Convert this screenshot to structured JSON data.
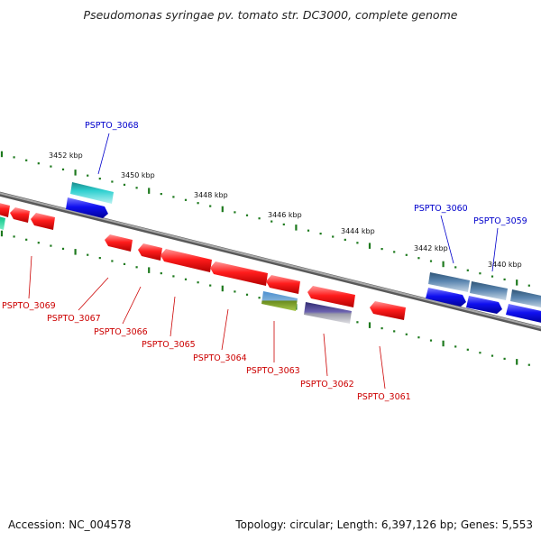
{
  "title": "Pseudomonas syringae pv. tomato str. DC3000, complete genome",
  "footer": {
    "accession": "Accession: NC_004578",
    "info": "Topology: circular; Length: 6,397,126 bp; Genes: 5,553"
  },
  "colors": {
    "backbone": "#8a8a8a",
    "tick_dots": "#1e7a1e",
    "reverse_label": "#cc0000",
    "forward_label": "#0000cc"
  },
  "ticks": [
    {
      "label": "3452 kbp"
    },
    {
      "label": "3450 kbp"
    },
    {
      "label": "3448 kbp"
    },
    {
      "label": "3446 kbp"
    },
    {
      "label": "3444 kbp"
    },
    {
      "label": "3442 kbp"
    },
    {
      "label": "3440 kbp"
    }
  ],
  "forward_labels": [
    {
      "text": "PSPTO_3068"
    },
    {
      "text": "PSPTO_3060"
    },
    {
      "text": "PSPTO_3059"
    }
  ],
  "reverse_labels": [
    {
      "text": "PSPTO_3069"
    },
    {
      "text": "PSPTO_3067"
    },
    {
      "text": "PSPTO_3066"
    },
    {
      "text": "PSPTO_3065"
    },
    {
      "text": "PSPTO_3064"
    },
    {
      "text": "PSPTO_3063"
    },
    {
      "text": "PSPTO_3062"
    },
    {
      "text": "PSPTO_3061"
    }
  ]
}
